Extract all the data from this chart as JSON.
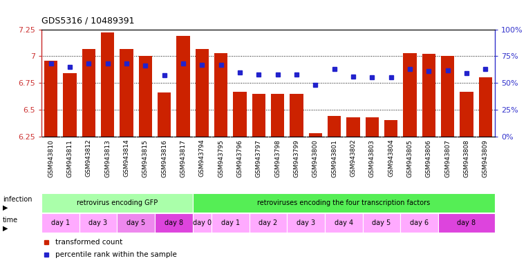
{
  "title": "GDS5316 / 10489391",
  "samples": [
    "GSM943810",
    "GSM943811",
    "GSM943812",
    "GSM943813",
    "GSM943814",
    "GSM943815",
    "GSM943816",
    "GSM943817",
    "GSM943794",
    "GSM943795",
    "GSM943796",
    "GSM943797",
    "GSM943798",
    "GSM943799",
    "GSM943800",
    "GSM943801",
    "GSM943802",
    "GSM943803",
    "GSM943804",
    "GSM943805",
    "GSM943806",
    "GSM943807",
    "GSM943808",
    "GSM943809"
  ],
  "bar_values": [
    6.96,
    6.84,
    7.07,
    7.22,
    7.07,
    7.0,
    6.66,
    7.19,
    7.07,
    7.03,
    6.67,
    6.65,
    6.65,
    6.65,
    6.28,
    6.44,
    6.43,
    6.43,
    6.4,
    7.03,
    7.02,
    7.0,
    6.67,
    6.8
  ],
  "percentile_values": [
    68,
    65,
    68,
    68,
    68,
    66,
    57,
    68,
    67,
    67,
    60,
    58,
    58,
    58,
    48,
    63,
    56,
    55,
    55,
    63,
    61,
    62,
    59,
    63
  ],
  "bar_color": "#cc2200",
  "marker_color": "#2222cc",
  "ymin": 6.25,
  "ymax": 7.25,
  "yticks": [
    6.25,
    6.5,
    6.75,
    7.0,
    7.25
  ],
  "ytick_labels": [
    "6.25",
    "6.5",
    "6.75",
    "7",
    "7.25"
  ],
  "right_yticks": [
    0,
    25,
    50,
    75,
    100
  ],
  "right_ytick_labels": [
    "0%",
    "25%",
    "50%",
    "75%",
    "100%"
  ],
  "grid_lines": [
    6.5,
    6.75,
    7.0
  ],
  "infection_groups": [
    {
      "label": "retrovirus encoding GFP",
      "start": 0,
      "end": 8,
      "color": "#aaffaa"
    },
    {
      "label": "retroviruses encoding the four transcription factors",
      "start": 8,
      "end": 24,
      "color": "#55ee55"
    }
  ],
  "time_groups": [
    {
      "label": "day 1",
      "start": 0,
      "end": 2,
      "color": "#ffaaff"
    },
    {
      "label": "day 3",
      "start": 2,
      "end": 4,
      "color": "#ffaaff"
    },
    {
      "label": "day 5",
      "start": 4,
      "end": 6,
      "color": "#ee88ee"
    },
    {
      "label": "day 8",
      "start": 6,
      "end": 8,
      "color": "#dd44dd"
    },
    {
      "label": "day 0",
      "start": 8,
      "end": 9,
      "color": "#ffaaff"
    },
    {
      "label": "day 1",
      "start": 9,
      "end": 11,
      "color": "#ffaaff"
    },
    {
      "label": "day 2",
      "start": 11,
      "end": 13,
      "color": "#ffaaff"
    },
    {
      "label": "day 3",
      "start": 13,
      "end": 15,
      "color": "#ffaaff"
    },
    {
      "label": "day 4",
      "start": 15,
      "end": 17,
      "color": "#ffaaff"
    },
    {
      "label": "day 5",
      "start": 17,
      "end": 19,
      "color": "#ffaaff"
    },
    {
      "label": "day 6",
      "start": 19,
      "end": 21,
      "color": "#ffaaff"
    },
    {
      "label": "day 8",
      "start": 21,
      "end": 24,
      "color": "#dd44dd"
    }
  ],
  "bg_color": "#ffffff",
  "xtick_bg": "#cccccc",
  "left_label_color": "#cc3333",
  "right_label_color": "#3333cc",
  "left_spine_color": "#cc3333",
  "right_spine_color": "#3333cc"
}
